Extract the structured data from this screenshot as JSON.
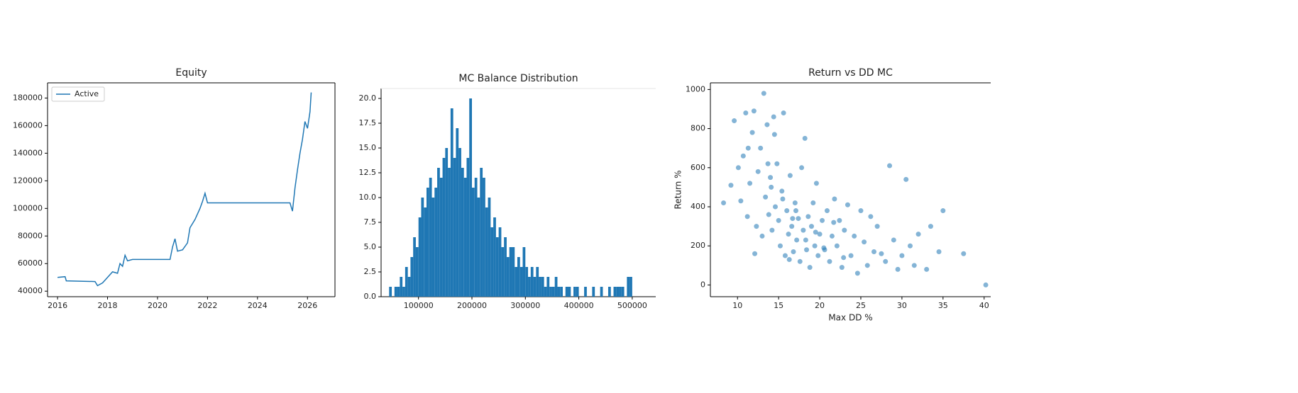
{
  "chart_data": [
    {
      "type": "line",
      "title": "Equity",
      "series": [
        {
          "name": "Active",
          "color": "#1f77b4",
          "x": [
            2016,
            2016.3,
            2016.35,
            2017.5,
            2017.6,
            2017.8,
            2018,
            2018.2,
            2018.4,
            2018.5,
            2018.6,
            2018.7,
            2018.8,
            2019,
            2020.5,
            2020.6,
            2020.7,
            2020.8,
            2021,
            2021.2,
            2021.3,
            2021.5,
            2021.7,
            2021.8,
            2021.9,
            2022,
            2025.3,
            2025.4,
            2025.5,
            2025.6,
            2025.7,
            2025.8,
            2025.9,
            2026,
            2026.1,
            2026.15
          ],
          "values": [
            50000,
            50500,
            47500,
            47000,
            44000,
            46000,
            50000,
            54000,
            53000,
            60000,
            58000,
            66000,
            62000,
            63000,
            63000,
            72000,
            78000,
            69000,
            70000,
            75000,
            86000,
            92000,
            100000,
            105000,
            111000,
            104000,
            104000,
            98000,
            115000,
            128000,
            140000,
            150000,
            163000,
            158000,
            170000,
            184000
          ]
        }
      ],
      "xlim": [
        2015.6,
        2027.1
      ],
      "xticks": [
        2016,
        2018,
        2020,
        2022,
        2024,
        2026
      ],
      "ylim": [
        36000,
        191000
      ],
      "yticks": [
        40000,
        60000,
        80000,
        100000,
        120000,
        140000,
        160000,
        180000
      ],
      "legend": "upper left"
    },
    {
      "type": "histogram",
      "title": "MC Balance Distribution",
      "color": "#1f77b4",
      "bins": [
        45000,
        50000,
        55000,
        60000,
        65000,
        70000,
        75000,
        80000,
        85000,
        90000,
        95000,
        100000,
        105000,
        110000,
        115000,
        120000,
        125000,
        130000,
        135000,
        140000,
        145000,
        150000,
        155000,
        160000,
        165000,
        170000,
        175000,
        180000,
        185000,
        190000,
        195000,
        200000,
        205000,
        210000,
        215000,
        220000,
        225000,
        230000,
        235000,
        240000,
        245000,
        250000,
        255000,
        260000,
        265000,
        270000,
        275000,
        280000,
        285000,
        290000,
        295000,
        300000,
        305000,
        310000,
        315000,
        320000,
        325000,
        330000,
        335000,
        340000,
        345000,
        350000,
        355000,
        360000,
        365000,
        370000,
        375000,
        380000,
        385000,
        390000,
        395000,
        400000,
        405000,
        410000,
        415000,
        420000,
        425000,
        430000,
        435000,
        440000,
        445000,
        450000,
        455000,
        460000,
        465000,
        470000,
        475000,
        480000,
        485000,
        490000,
        495000,
        500000
      ],
      "values": [
        1,
        0,
        1,
        1,
        2,
        1,
        3,
        2,
        4,
        6,
        5,
        8,
        10,
        9,
        11,
        12,
        10,
        11,
        13,
        12,
        14,
        15,
        13,
        19,
        14,
        17,
        15,
        13,
        12,
        14,
        20,
        11,
        12,
        10,
        13,
        12,
        9,
        10,
        7,
        8,
        6,
        7,
        5,
        6,
        4,
        5,
        5,
        3,
        4,
        3,
        5,
        3,
        2,
        3,
        2,
        3,
        2,
        2,
        1,
        2,
        1,
        1,
        2,
        1,
        1,
        0,
        1,
        1,
        0,
        1,
        1,
        0,
        0,
        1,
        0,
        0,
        1,
        0,
        0,
        1,
        0,
        0,
        1,
        0,
        1,
        1,
        1,
        1,
        0,
        2,
        2
      ],
      "xlim": [
        30000,
        544000
      ],
      "xticks": [
        100000,
        200000,
        300000,
        400000,
        500000
      ],
      "ylim": [
        0,
        21
      ],
      "yticks": [
        {
          "value": 0,
          "label": "0.0"
        },
        2.5,
        {
          "value": 5,
          "label": "5.0"
        },
        7.5,
        {
          "value": 10,
          "label": "10.0"
        },
        12.5,
        {
          "value": 15,
          "label": "15.0"
        },
        17.5,
        {
          "value": 20,
          "label": "20.0"
        }
      ]
    },
    {
      "type": "scatter",
      "title": "Return vs DD MC",
      "x_label": "Max DD %",
      "y_label": "Return %",
      "color": "#1f77b4",
      "x": [
        8.3,
        9.2,
        9.6,
        10.1,
        10.4,
        10.7,
        11.0,
        11.2,
        11.5,
        11.8,
        12.0,
        12.3,
        12.5,
        12.8,
        13.0,
        13.2,
        13.4,
        13.6,
        13.8,
        14.0,
        14.2,
        14.4,
        14.6,
        14.8,
        15.0,
        15.2,
        15.4,
        15.6,
        15.8,
        16.0,
        16.2,
        16.4,
        16.6,
        16.8,
        17.0,
        17.2,
        17.4,
        17.6,
        17.8,
        18.0,
        18.2,
        18.4,
        18.6,
        18.8,
        19.0,
        19.2,
        19.4,
        19.6,
        19.8,
        20.0,
        20.3,
        20.6,
        20.9,
        21.2,
        21.5,
        21.8,
        22.1,
        22.4,
        22.7,
        23.0,
        23.4,
        23.8,
        24.2,
        24.6,
        25.0,
        25.4,
        25.8,
        26.2,
        26.6,
        27.0,
        27.5,
        28.0,
        28.5,
        29.0,
        29.5,
        30.0,
        30.5,
        31.0,
        31.5,
        32.0,
        33.0,
        33.5,
        34.5,
        35.0,
        37.5,
        40.2,
        11.3,
        12.1,
        13.7,
        14.1,
        15.5,
        16.3,
        17.1,
        18.3,
        19.5,
        20.5,
        21.7,
        22.9,
        14.5,
        16.7
      ],
      "values": [
        420,
        510,
        840,
        600,
        430,
        660,
        880,
        350,
        520,
        780,
        890,
        300,
        580,
        700,
        250,
        980,
        450,
        820,
        360,
        550,
        280,
        860,
        400,
        620,
        330,
        200,
        480,
        880,
        150,
        380,
        260,
        560,
        300,
        170,
        420,
        230,
        340,
        120,
        600,
        280,
        750,
        180,
        350,
        90,
        300,
        420,
        200,
        520,
        150,
        260,
        330,
        180,
        380,
        120,
        250,
        440,
        200,
        330,
        90,
        280,
        410,
        150,
        250,
        60,
        380,
        220,
        100,
        350,
        170,
        300,
        160,
        120,
        610,
        230,
        80,
        150,
        540,
        200,
        100,
        260,
        80,
        300,
        170,
        380,
        160,
        0,
        700,
        160,
        620,
        500,
        440,
        130,
        380,
        230,
        270,
        190,
        320,
        140,
        770,
        340
      ],
      "xlim": [
        6.7,
        40.8
      ],
      "xticks": [
        10,
        15,
        20,
        25,
        30,
        35,
        40
      ],
      "ylim": [
        -60,
        1034
      ],
      "yticks": [
        0,
        200,
        400,
        600,
        800,
        1000
      ]
    }
  ]
}
